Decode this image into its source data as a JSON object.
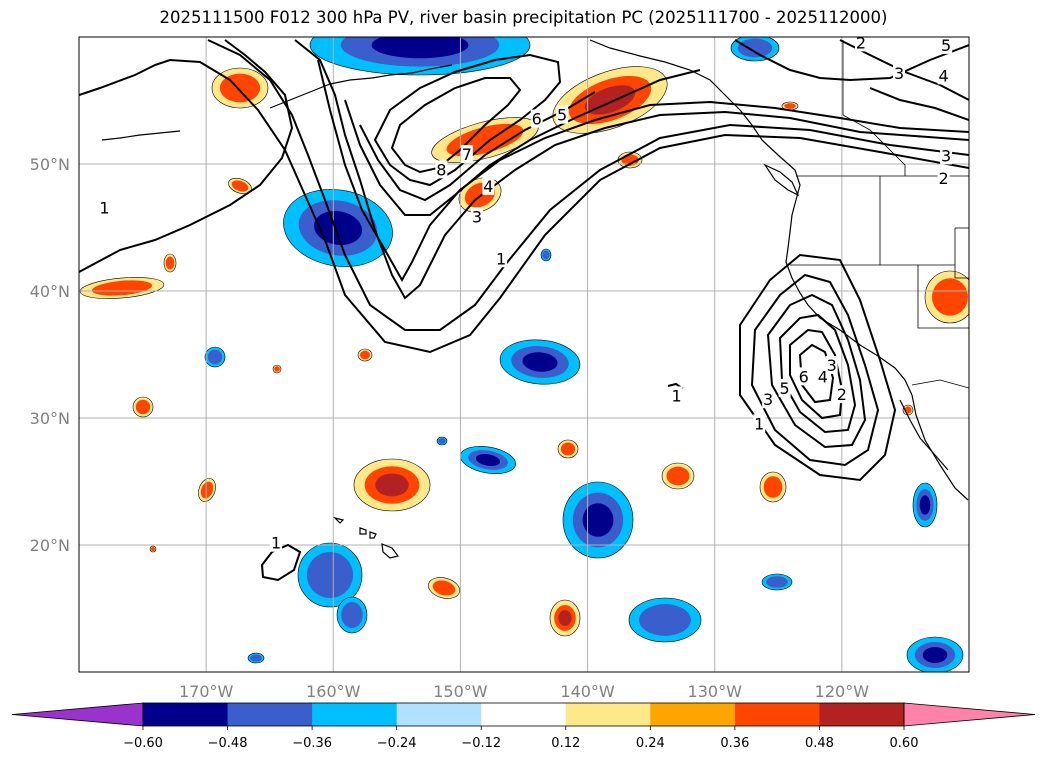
{
  "title": "2025111500 F012 300 hPa PV, river basin precipitation PC (2025111700 - 2025112000)",
  "map": {
    "projection": "PlateCarree",
    "lon_range": [
      -180,
      -110
    ],
    "lat_range": [
      10,
      60
    ],
    "gridlines": true,
    "lon_ticks": [
      {
        "value": -170,
        "label": "170°W"
      },
      {
        "value": -160,
        "label": "160°W"
      },
      {
        "value": -150,
        "label": "150°W"
      },
      {
        "value": -140,
        "label": "140°W"
      },
      {
        "value": -130,
        "label": "130°W"
      },
      {
        "value": -120,
        "label": "120°W"
      }
    ],
    "lat_ticks": [
      {
        "value": 50,
        "label": "50°N"
      },
      {
        "value": 40,
        "label": "40°N"
      },
      {
        "value": 30,
        "label": "30°N"
      },
      {
        "value": 20,
        "label": "20°N"
      }
    ],
    "pv_contour_labels": [
      {
        "text": "1",
        "lon": -178,
        "lat": 46.5
      },
      {
        "text": "8",
        "lon": -151.5,
        "lat": 49.5
      },
      {
        "text": "7",
        "lon": -149.5,
        "lat": 50.7
      },
      {
        "text": "6",
        "lon": -144,
        "lat": 53.5
      },
      {
        "text": "5",
        "lon": -142,
        "lat": 53.8
      },
      {
        "text": "4",
        "lon": -147.8,
        "lat": 48.2
      },
      {
        "text": "3",
        "lon": -148.7,
        "lat": 45.8
      },
      {
        "text": "1",
        "lon": -146.8,
        "lat": 42.5
      },
      {
        "text": "2",
        "lon": -118.5,
        "lat": 59.5
      },
      {
        "text": "5",
        "lon": -111.8,
        "lat": 59.3
      },
      {
        "text": "3",
        "lon": -115.5,
        "lat": 57.1
      },
      {
        "text": "4",
        "lon": -112,
        "lat": 56.9
      },
      {
        "text": "3",
        "lon": -111.8,
        "lat": 50.6
      },
      {
        "text": "2",
        "lon": -112,
        "lat": 48.8
      },
      {
        "text": "1",
        "lon": -133,
        "lat": 31.7
      },
      {
        "text": "1",
        "lon": -126.5,
        "lat": 29.5
      },
      {
        "text": "3",
        "lon": -125.8,
        "lat": 31.4
      },
      {
        "text": "5",
        "lon": -124.5,
        "lat": 32.3
      },
      {
        "text": "6",
        "lon": -123,
        "lat": 33.2
      },
      {
        "text": "4",
        "lon": -121.5,
        "lat": 33.2
      },
      {
        "text": "3",
        "lon": -120.8,
        "lat": 34.1
      },
      {
        "text": "2",
        "lon": -120,
        "lat": 31.8
      },
      {
        "text": "1",
        "lon": -164.5,
        "lat": 20.1
      }
    ]
  },
  "colorbar": {
    "labels": [
      "−0.60",
      "−0.48",
      "−0.36",
      "−0.24",
      "−0.12",
      "0.12",
      "0.24",
      "0.36",
      "0.48",
      "0.60"
    ],
    "colors": [
      "#9933cc",
      "#00008b",
      "#3a5fcd",
      "#00bfff",
      "#b0e2ff",
      "#ffffff",
      "#ffe88a",
      "#ffa500",
      "#ff4500",
      "#b22222",
      "#ff82ab"
    ],
    "extend": "both"
  },
  "colors": {
    "strong_neg": "#00008b",
    "neg": "#3a5fcd",
    "weak_neg": "#00bfff",
    "weak_pos": "#ffe88a",
    "mid_pos": "#ffa500",
    "pos": "#ff4500",
    "strong_pos": "#b22222"
  }
}
